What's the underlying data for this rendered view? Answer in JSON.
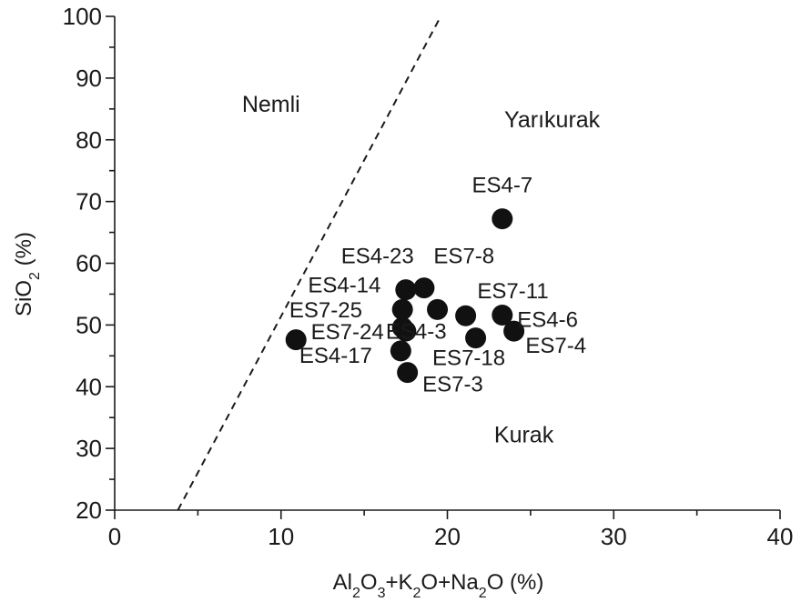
{
  "chart_data": {
    "type": "scatter",
    "xlim": [
      0,
      40
    ],
    "ylim": [
      20,
      100
    ],
    "x_major_ticks": [
      0,
      10,
      20,
      30,
      40
    ],
    "x_minor_ticks": [
      5,
      15,
      25,
      35
    ],
    "y_major_ticks": [
      20,
      30,
      40,
      50,
      60,
      70,
      80,
      90,
      100
    ],
    "y_minor_ticks": [
      25,
      35,
      45,
      55,
      65,
      75,
      85,
      95
    ],
    "xlabel": {
      "parts": [
        "Al",
        "2",
        "O",
        "3",
        "+K",
        "2",
        "O+Na",
        "2",
        "O (%)"
      ]
    },
    "ylabel": {
      "parts": [
        "SiO",
        "2",
        " (%)"
      ]
    },
    "grid": false,
    "point_color": "#111111",
    "region_labels": [
      {
        "text": "Nemli",
        "x": 9.4,
        "y": 84.5
      },
      {
        "text": "Yarıkurak",
        "x": 26.3,
        "y": 82.0
      },
      {
        "text": "Kurak",
        "x": 24.6,
        "y": 31.0
      }
    ],
    "divider": {
      "style": "dashed",
      "x": [
        3.8,
        19.6
      ],
      "y": [
        20,
        100
      ]
    },
    "points": [
      {
        "label": "ES4-7",
        "x": 23.3,
        "y": 67.2,
        "lx": 23.3,
        "ly": 71.5,
        "anchor": "middle"
      },
      {
        "label": "ES4-23",
        "x": 17.5,
        "y": 55.7,
        "lx": 15.8,
        "ly": 60.0,
        "anchor": "middle"
      },
      {
        "label": "ES7-8",
        "x": 18.6,
        "y": 56.0,
        "lx": 21.0,
        "ly": 60.0,
        "anchor": "middle"
      },
      {
        "label": "ES4-14",
        "x": 17.3,
        "y": 52.5,
        "lx": 16.0,
        "ly": 55.3,
        "anchor": "end"
      },
      {
        "label": "ES7-11",
        "x": 23.3,
        "y": 51.6,
        "lx": 21.8,
        "ly": 54.3,
        "anchor": "start"
      },
      {
        "label": "ES7-25",
        "x": 17.3,
        "y": 49.6,
        "lx": 10.5,
        "ly": 51.2,
        "anchor": "start"
      },
      {
        "label": "ES7-24",
        "x": 17.5,
        "y": 49.0,
        "lx": 11.8,
        "ly": 47.7,
        "anchor": "start"
      },
      {
        "label": "ES4-3",
        "x": 19.4,
        "y": 52.5,
        "lx": 16.3,
        "ly": 47.8,
        "anchor": "start"
      },
      {
        "label": "ES4-17",
        "x": 10.9,
        "y": 47.6,
        "lx": 11.1,
        "ly": 43.9,
        "anchor": "start"
      },
      {
        "label": "ES4-6",
        "x": 24.0,
        "y": 49.0,
        "lx": 24.2,
        "ly": 49.7,
        "anchor": "start"
      },
      {
        "label": "ES7-4",
        "x": 21.7,
        "y": 47.9,
        "lx": 24.7,
        "ly": 45.5,
        "anchor": "start"
      },
      {
        "label": "ES7-18",
        "x": 21.1,
        "y": 51.5,
        "lx": 19.1,
        "ly": 43.5,
        "anchor": "start"
      },
      {
        "label": "ES7-3",
        "x": 17.6,
        "y": 42.3,
        "lx": 18.5,
        "ly": 39.2,
        "anchor": "start"
      },
      {
        "label": "",
        "x": 17.2,
        "y": 45.8
      }
    ]
  }
}
